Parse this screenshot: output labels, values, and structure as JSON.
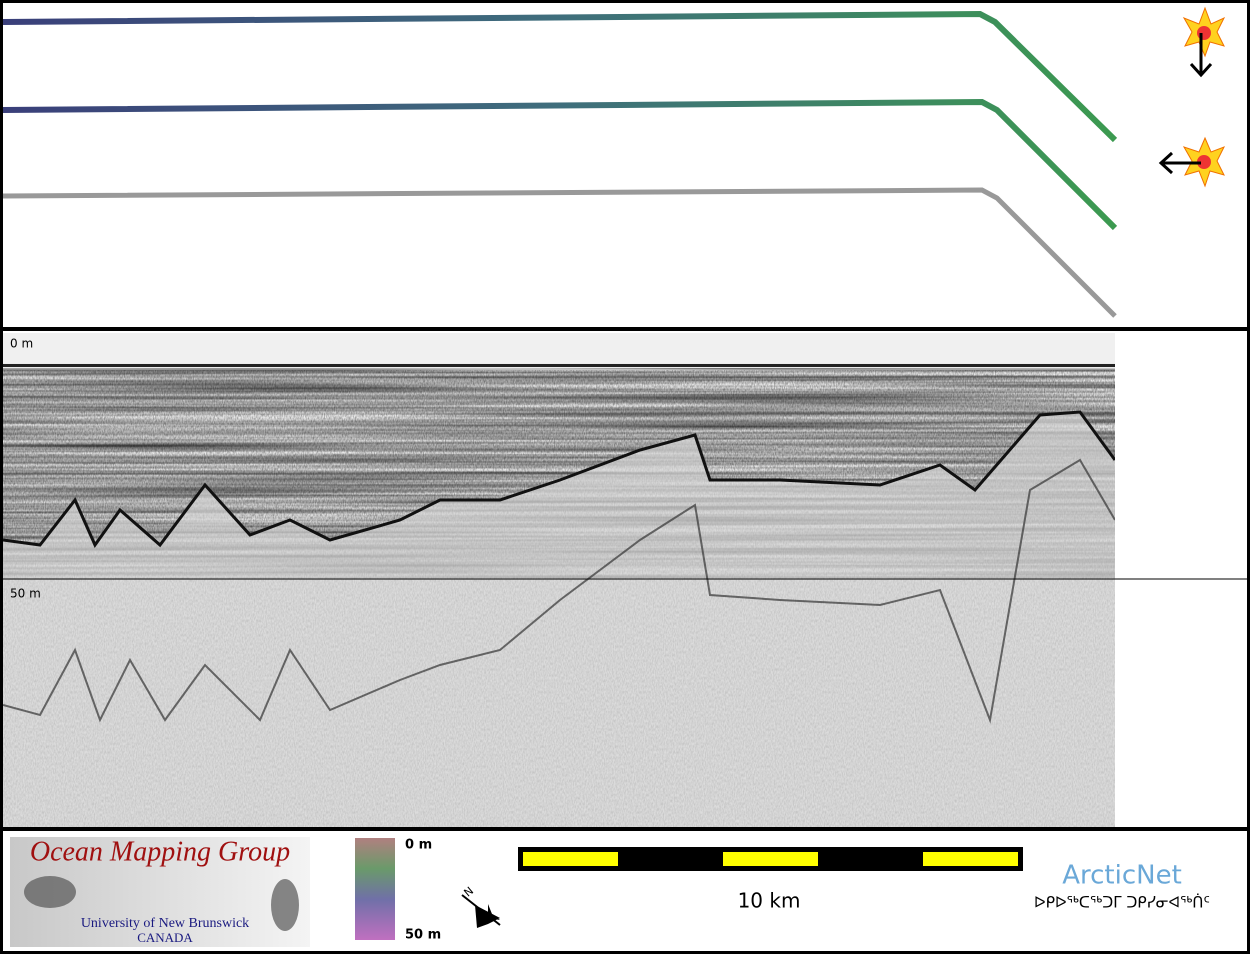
{
  "profile": {
    "top_label": "0 m",
    "mid_label": "50 m"
  },
  "legend": {
    "depth_top": "0 m",
    "depth_bottom": "50 m",
    "scale": "10 km"
  },
  "logos": {
    "omg_title": "Ocean Mapping Group",
    "omg_university": "University of New Brunswick",
    "omg_country": "CANADA",
    "arcticnet": "ArcticNet",
    "arcticnet_syllabics": "ᐅᑭᐅᖅᑕᖅᑐᒥ ᑐᑭᓯᓂᐊᖅᑏᑦ"
  }
}
